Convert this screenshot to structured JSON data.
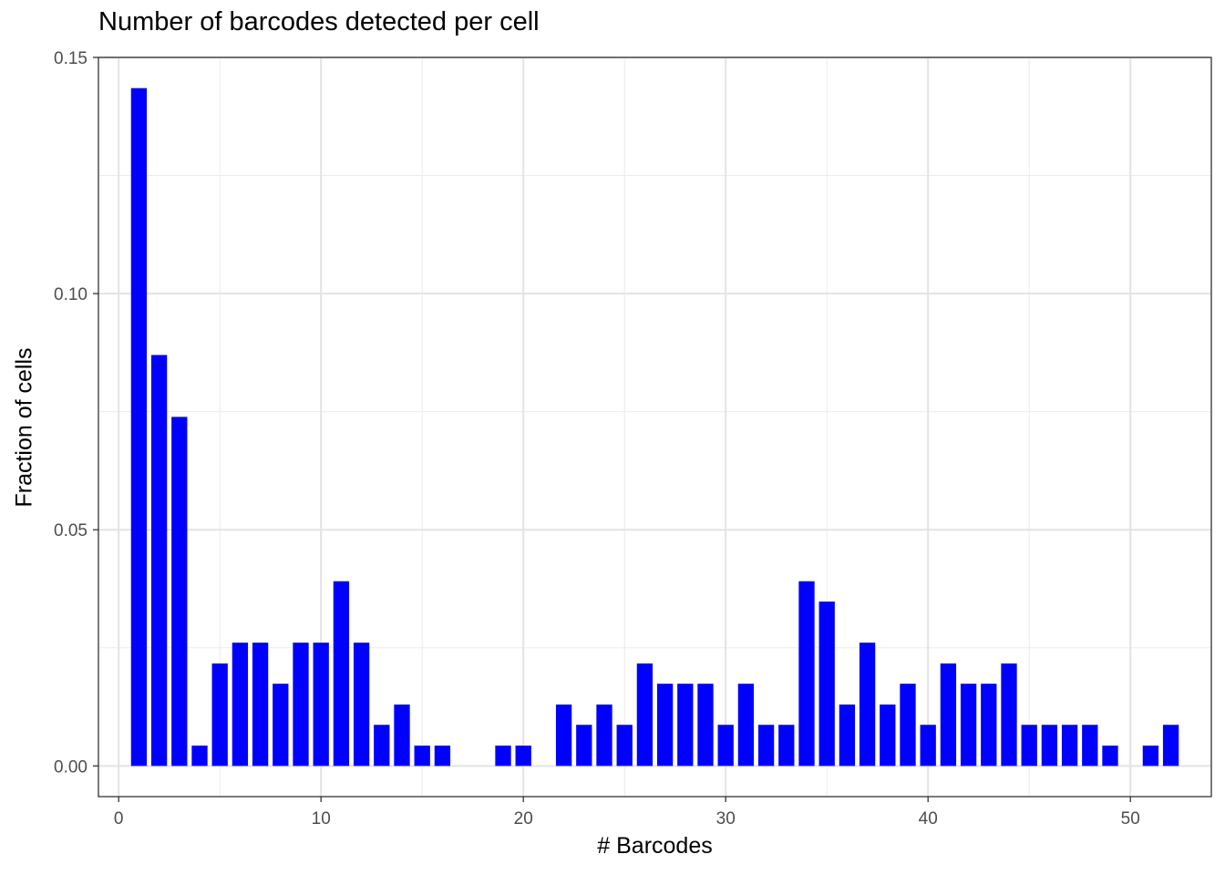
{
  "chart_data": {
    "type": "bar",
    "title": "Number of barcodes detected per cell",
    "xlabel": "# Barcodes",
    "ylabel": "Fraction of cells",
    "xlim": [
      -1,
      54
    ],
    "ylim": [
      -0.0065,
      0.15
    ],
    "x_ticks": [
      0,
      10,
      20,
      30,
      40,
      50
    ],
    "x_tick_labels": [
      "0",
      "10",
      "20",
      "30",
      "40",
      "50"
    ],
    "y_ticks": [
      0.0,
      0.05,
      0.1,
      0.15
    ],
    "y_tick_labels": [
      "0.00",
      "0.05",
      "0.10",
      "0.15"
    ],
    "grid": true,
    "bar_color": "#0000FF",
    "x": [
      1,
      2,
      3,
      4,
      5,
      6,
      7,
      8,
      9,
      10,
      11,
      12,
      13,
      14,
      15,
      16,
      19,
      20,
      22,
      23,
      24,
      25,
      26,
      27,
      28,
      29,
      30,
      31,
      32,
      33,
      34,
      35,
      36,
      37,
      38,
      39,
      40,
      41,
      42,
      43,
      44,
      45,
      46,
      47,
      48,
      49,
      51,
      52
    ],
    "values": [
      0.1435,
      0.087,
      0.0739,
      0.0043,
      0.0217,
      0.0261,
      0.0261,
      0.0174,
      0.0261,
      0.0261,
      0.0391,
      0.0261,
      0.0087,
      0.013,
      0.0043,
      0.0043,
      0.0043,
      0.0043,
      0.013,
      0.0087,
      0.013,
      0.0087,
      0.0217,
      0.0174,
      0.0174,
      0.0174,
      0.0087,
      0.0174,
      0.0087,
      0.0087,
      0.0391,
      0.0348,
      0.013,
      0.0261,
      0.013,
      0.0174,
      0.0087,
      0.0217,
      0.0174,
      0.0174,
      0.0217,
      0.0087,
      0.0087,
      0.0087,
      0.0087,
      0.0043,
      0.0043,
      0.0087
    ]
  }
}
